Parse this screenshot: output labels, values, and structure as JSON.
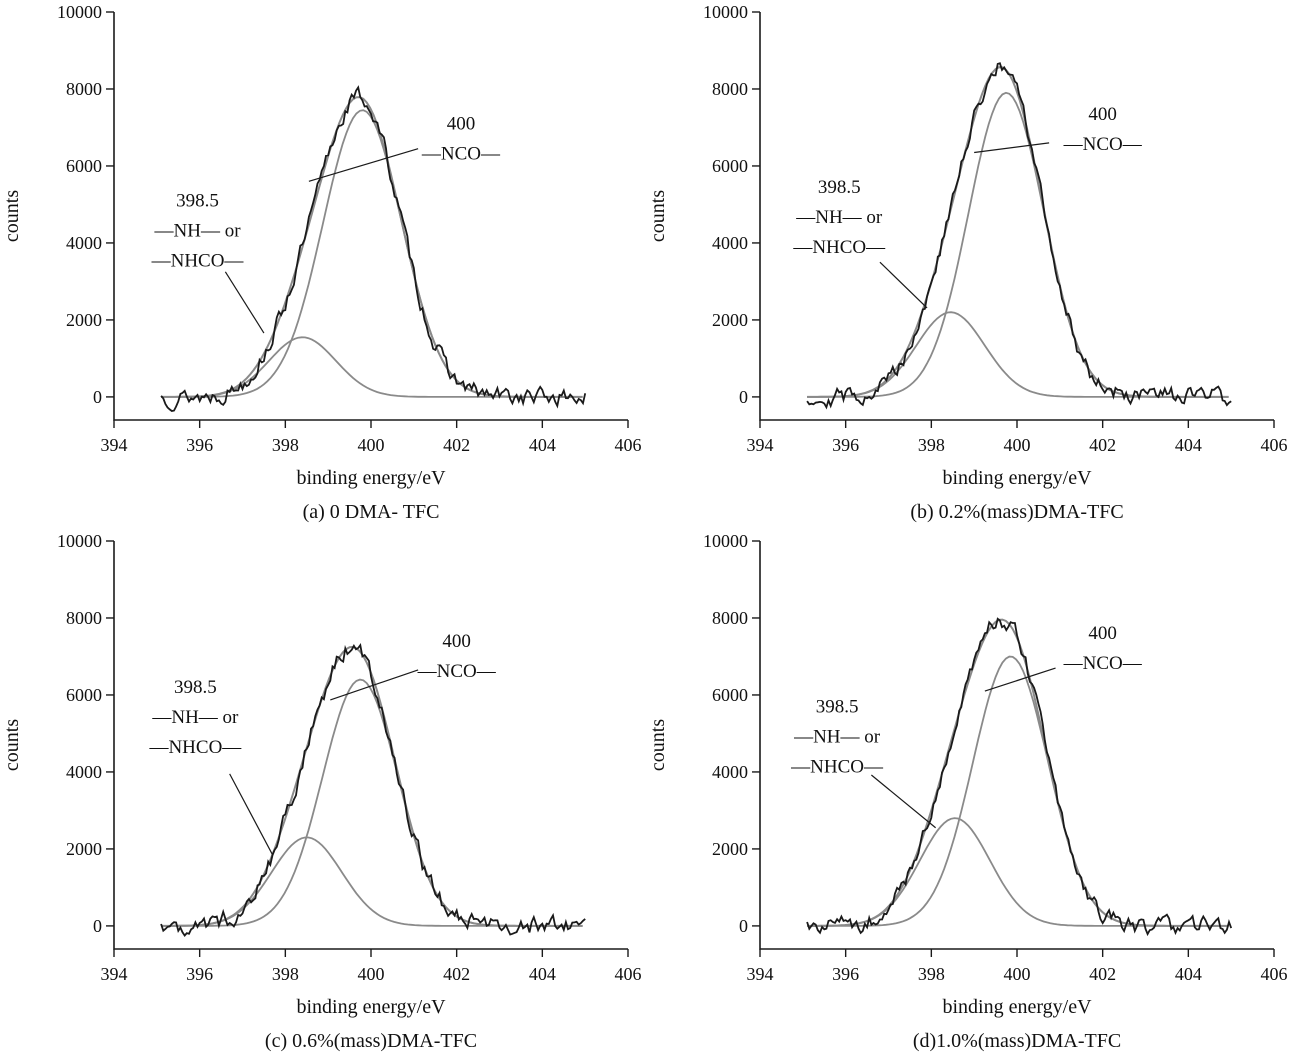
{
  "figure": {
    "colors": {
      "experimental": "#1a1a1a",
      "fit": "#8a8a8a",
      "axis": "#1a1a1a",
      "text": "#111111",
      "background": "#ffffff"
    }
  },
  "chart_data": [
    {
      "panel": "a",
      "type": "line",
      "caption": "(a) 0 DMA- TFC",
      "xlabel": "binding energy/eV",
      "ylabel": "counts",
      "xlim": [
        394,
        406
      ],
      "ylim": [
        -600,
        10000
      ],
      "xticks": [
        394,
        396,
        398,
        400,
        402,
        404,
        406
      ],
      "yticks": [
        0,
        2000,
        4000,
        6000,
        8000,
        10000
      ],
      "data_x_range": [
        395.1,
        405.0
      ],
      "grid": false,
      "legend": "none",
      "series": [
        {
          "name": "experimental",
          "style": "noisy",
          "seed": 13,
          "noise_amp": 380
        },
        {
          "name": "fit-envelope",
          "style": "sum-of-peaks"
        },
        {
          "name": "peak-NH-NHCO",
          "style": "gaussian",
          "center": 398.4,
          "sigma": 0.78,
          "amplitude": 1550
        },
        {
          "name": "peak-NCO",
          "style": "gaussian",
          "center": 399.8,
          "sigma": 0.92,
          "amplitude": 7450
        }
      ],
      "annotations": [
        {
          "id": "nh",
          "lines": [
            "398.5",
            "—NH— or",
            "—NHCO—"
          ],
          "x": 395.95,
          "y": 4950,
          "leader": [
            396.6,
            3250,
            397.5,
            1660
          ]
        },
        {
          "id": "nco",
          "lines": [
            "400",
            "—NCO—"
          ],
          "x": 402.1,
          "y": 6950,
          "leader": [
            401.1,
            6450,
            398.55,
            5600
          ]
        }
      ]
    },
    {
      "panel": "b",
      "type": "line",
      "caption": "(b) 0.2%(mass)DMA-TFC",
      "xlabel": "binding energy/eV",
      "ylabel": "counts",
      "xlim": [
        394,
        406
      ],
      "ylim": [
        -600,
        10000
      ],
      "xticks": [
        394,
        396,
        398,
        400,
        402,
        404,
        406
      ],
      "yticks": [
        0,
        2000,
        4000,
        6000,
        8000,
        10000
      ],
      "data_x_range": [
        395.1,
        405.0
      ],
      "grid": false,
      "legend": "none",
      "series": [
        {
          "name": "experimental",
          "style": "noisy",
          "seed": 29,
          "noise_amp": 380
        },
        {
          "name": "fit-envelope",
          "style": "sum-of-peaks"
        },
        {
          "name": "peak-NH-NHCO",
          "style": "gaussian",
          "center": 398.45,
          "sigma": 0.8,
          "amplitude": 2200
        },
        {
          "name": "peak-NCO",
          "style": "gaussian",
          "center": 399.75,
          "sigma": 0.88,
          "amplitude": 7900
        }
      ],
      "annotations": [
        {
          "id": "nh",
          "lines": [
            "398.5",
            "—NH— or",
            "—NHCO—"
          ],
          "x": 395.85,
          "y": 5300,
          "leader": [
            396.8,
            3500,
            397.9,
            2310
          ]
        },
        {
          "id": "nco",
          "lines": [
            "400",
            "—NCO—"
          ],
          "x": 402.0,
          "y": 7200,
          "leader": [
            400.75,
            6600,
            399.0,
            6350
          ]
        }
      ]
    },
    {
      "panel": "c",
      "type": "line",
      "caption": "(c) 0.6%(mass)DMA-TFC",
      "xlabel": "binding energy/eV",
      "ylabel": "counts",
      "xlim": [
        394,
        406
      ],
      "ylim": [
        -600,
        10000
      ],
      "xticks": [
        394,
        396,
        398,
        400,
        402,
        404,
        406
      ],
      "yticks": [
        0,
        2000,
        4000,
        6000,
        8000,
        10000
      ],
      "data_x_range": [
        395.1,
        405.0
      ],
      "grid": false,
      "legend": "none",
      "series": [
        {
          "name": "experimental",
          "style": "noisy",
          "seed": 47,
          "noise_amp": 380
        },
        {
          "name": "fit-envelope",
          "style": "sum-of-peaks"
        },
        {
          "name": "peak-NH-NHCO",
          "style": "gaussian",
          "center": 398.5,
          "sigma": 0.82,
          "amplitude": 2300
        },
        {
          "name": "peak-NCO",
          "style": "gaussian",
          "center": 399.75,
          "sigma": 0.88,
          "amplitude": 6400
        }
      ],
      "annotations": [
        {
          "id": "nh",
          "lines": [
            "398.5",
            "—NH— or",
            "—NHCO—"
          ],
          "x": 395.9,
          "y": 6050,
          "leader": [
            396.7,
            3950,
            397.7,
            1850
          ]
        },
        {
          "id": "nco",
          "lines": [
            "400",
            "—NCO—"
          ],
          "x": 402.0,
          "y": 7250,
          "leader": [
            401.1,
            6650,
            399.05,
            5870
          ]
        }
      ]
    },
    {
      "panel": "d",
      "type": "line",
      "caption": "(d)1.0%(mass)DMA-TFC",
      "xlabel": "binding energy/eV",
      "ylabel": "counts",
      "xlim": [
        394,
        406
      ],
      "ylim": [
        -600,
        10000
      ],
      "xticks": [
        394,
        396,
        398,
        400,
        402,
        404,
        406
      ],
      "yticks": [
        0,
        2000,
        4000,
        6000,
        8000,
        10000
      ],
      "data_x_range": [
        395.1,
        405.0
      ],
      "grid": false,
      "legend": "none",
      "series": [
        {
          "name": "experimental",
          "style": "noisy",
          "seed": 71,
          "noise_amp": 380
        },
        {
          "name": "fit-envelope",
          "style": "sum-of-peaks"
        },
        {
          "name": "peak-NH-NHCO",
          "style": "gaussian",
          "center": 398.55,
          "sigma": 0.82,
          "amplitude": 2800
        },
        {
          "name": "peak-NCO",
          "style": "gaussian",
          "center": 399.85,
          "sigma": 0.88,
          "amplitude": 7000
        }
      ],
      "annotations": [
        {
          "id": "nh",
          "lines": [
            "398.5",
            "—NH— or",
            "—NHCO—"
          ],
          "x": 395.8,
          "y": 5550,
          "leader": [
            396.6,
            3920,
            398.1,
            2550
          ]
        },
        {
          "id": "nco",
          "lines": [
            "400",
            "—NCO—"
          ],
          "x": 402.0,
          "y": 7450,
          "leader": [
            400.9,
            6700,
            399.25,
            6100
          ]
        }
      ]
    }
  ]
}
